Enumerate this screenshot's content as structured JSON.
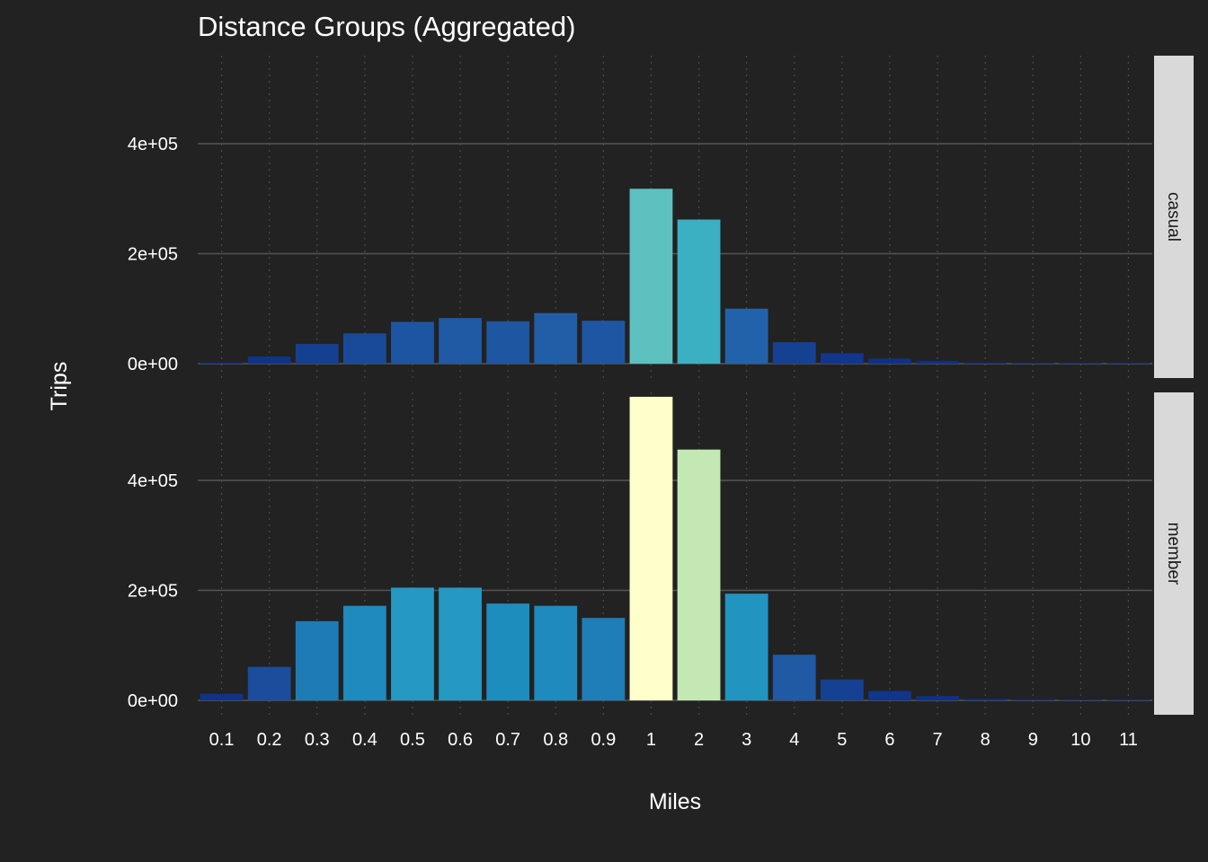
{
  "chart_data": {
    "type": "bar",
    "title": "Distance Groups (Aggregated)",
    "xlabel": "Miles",
    "ylabel": "Trips",
    "categories": [
      "0.1",
      "0.2",
      "0.3",
      "0.4",
      "0.5",
      "0.6",
      "0.7",
      "0.8",
      "0.9",
      "1",
      "2",
      "3",
      "4",
      "5",
      "6",
      "7",
      "8",
      "9",
      "10",
      "11"
    ],
    "ylim": [
      0,
      560000
    ],
    "yticks": [
      {
        "value": 0,
        "label": "0e+00"
      },
      {
        "value": 200000,
        "label": "2e+05"
      },
      {
        "value": 400000,
        "label": "4e+05"
      }
    ],
    "fill_scale": {
      "low": "#0c2c84",
      "mid1": "#225ea8",
      "mid2": "#1d91c0",
      "mid3": "#41b6c4",
      "mid4": "#7fcdbb",
      "mid5": "#c7e9b4",
      "high": "#ffffcc"
    },
    "panels": [
      {
        "strip": "casual",
        "values": [
          2000,
          13000,
          36000,
          55000,
          76000,
          83000,
          77000,
          92000,
          78000,
          318000,
          262000,
          100000,
          39000,
          19000,
          9000,
          5000,
          2000,
          1000,
          500,
          300
        ]
      },
      {
        "strip": "member",
        "values": [
          12000,
          61000,
          144000,
          172000,
          205000,
          205000,
          176000,
          172000,
          150000,
          552000,
          456000,
          194000,
          83000,
          38000,
          17000,
          8000,
          3000,
          2000,
          1500,
          1000
        ]
      }
    ],
    "grid": {
      "major_y": true,
      "minor_x_dotted": true
    },
    "legend": "none"
  },
  "colors": {
    "background": "#222222",
    "gridline": "#555555",
    "minor_grid": "#4a4a4a",
    "strip_background": "#d9d9d9",
    "text": "#ffffff"
  }
}
